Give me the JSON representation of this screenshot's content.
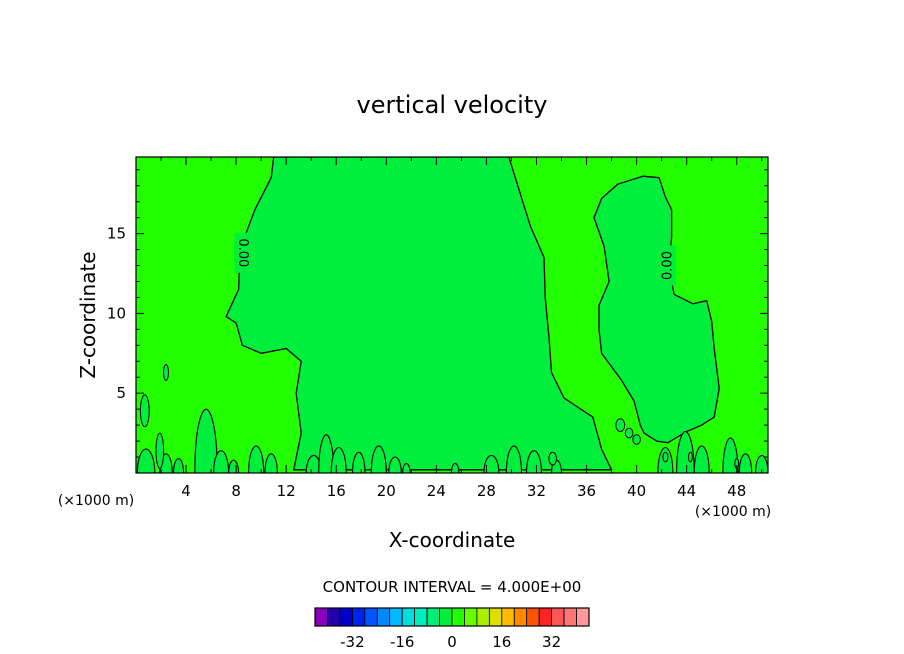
{
  "chart_data": {
    "type": "heatmap",
    "title": "vertical velocity",
    "xlabel": "X-coordinate",
    "ylabel": "Z-coordinate",
    "x_unit": "(×1000 m)",
    "x_ticks": [
      4,
      8,
      12,
      16,
      20,
      24,
      28,
      32,
      36,
      40,
      44,
      48
    ],
    "y_ticks": [
      5,
      10,
      15
    ],
    "xlim": [
      0,
      50.5
    ],
    "ylim": [
      0,
      19.8
    ],
    "contour_interval_text": "CONTOUR INTERVAL = 4.000E+00",
    "contour_labels": [
      "0.00",
      "0.00"
    ],
    "background_region_color": "#22ff00",
    "positive_region_color": "#00ee3c",
    "colorbar": {
      "tick_labels": [
        "-32",
        "-16",
        "0",
        "16",
        "32"
      ],
      "tick_values": [
        -32,
        -16,
        0,
        16,
        32
      ],
      "colors": [
        "#8800bb",
        "#2200aa",
        "#0000cc",
        "#0022ee",
        "#0055ff",
        "#0088ff",
        "#00bbff",
        "#00dddd",
        "#00eebb",
        "#00ee77",
        "#00ee3c",
        "#22ff00",
        "#66ff00",
        "#aaee00",
        "#dddd00",
        "#ffbb00",
        "#ff8800",
        "#ff5500",
        "#ff2222",
        "#ff5555",
        "#ff7777",
        "#ff9999"
      ]
    },
    "regions": [
      {
        "name": "central-updraft",
        "value": "positive",
        "boundary": [
          [
            11,
            19.8
          ],
          [
            10.8,
            18.5
          ],
          [
            9.5,
            16.5
          ],
          [
            8.3,
            14
          ],
          [
            8.2,
            11.5
          ],
          [
            7.2,
            9.8
          ],
          [
            8,
            9.4
          ],
          [
            8.5,
            8
          ],
          [
            10,
            7.5
          ],
          [
            12,
            7.8
          ],
          [
            13.2,
            7
          ],
          [
            12.8,
            5
          ],
          [
            13.2,
            2.5
          ],
          [
            12.6,
            0.2
          ],
          [
            38,
            0.2
          ],
          [
            37.2,
            1.5
          ],
          [
            36.5,
            3.5
          ],
          [
            34.2,
            4.7
          ],
          [
            33.2,
            6.3
          ],
          [
            33,
            8.5
          ],
          [
            32.7,
            11
          ],
          [
            32.6,
            13.5
          ],
          [
            31.5,
            15.5
          ],
          [
            29.8,
            19.8
          ]
        ]
      },
      {
        "name": "east-updraft",
        "value": "positive",
        "boundary": [
          [
            40.5,
            18.6
          ],
          [
            41.8,
            18.5
          ],
          [
            42.3,
            17.3
          ],
          [
            42.8,
            16.5
          ],
          [
            42.8,
            14.8
          ],
          [
            42.6,
            12.8
          ],
          [
            43,
            11.2
          ],
          [
            44.5,
            10.6
          ],
          [
            45.6,
            10.8
          ],
          [
            46,
            9.5
          ],
          [
            46.2,
            7.8
          ],
          [
            46.6,
            5.3
          ],
          [
            46.2,
            3.5
          ],
          [
            45.2,
            3
          ],
          [
            44,
            2.6
          ],
          [
            42.5,
            1.9
          ],
          [
            41.6,
            2
          ],
          [
            40.6,
            2.5
          ],
          [
            40.3,
            3
          ],
          [
            39.8,
            4.5
          ],
          [
            38.8,
            5.8
          ],
          [
            37.2,
            7.5
          ],
          [
            37,
            9
          ],
          [
            37,
            10.5
          ],
          [
            37.8,
            12
          ],
          [
            37.4,
            14.2
          ],
          [
            36.6,
            16
          ],
          [
            37.2,
            17.2
          ],
          [
            38.5,
            18.1
          ],
          [
            40.5,
            18.6
          ]
        ]
      }
    ]
  }
}
